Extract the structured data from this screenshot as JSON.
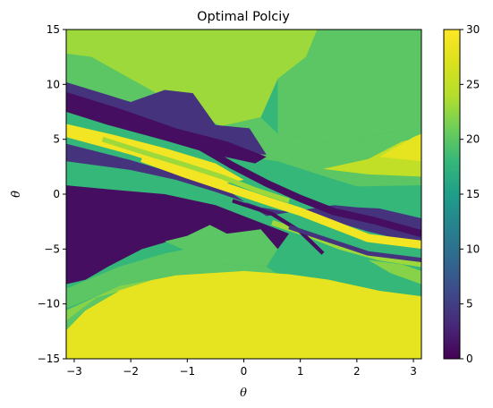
{
  "chart_data": {
    "type": "heatmap",
    "title": "Optimal Polciy",
    "xlabel": "θ",
    "ylabel": "θ̇",
    "xlim": [
      -3.14159,
      3.14159
    ],
    "ylim": [
      -15,
      15
    ],
    "xticks": [
      -3,
      -2,
      -1,
      0,
      1,
      2,
      3
    ],
    "xtick_labels": [
      "−3",
      "−2",
      "−1",
      "0",
      "1",
      "2",
      "3"
    ],
    "yticks": [
      -15,
      -10,
      -5,
      0,
      5,
      10,
      15
    ],
    "ytick_labels": [
      "−15",
      "−10",
      "−5",
      "0",
      "5",
      "10",
      "15"
    ],
    "colorbar": {
      "colormap": "viridis",
      "range": [
        0,
        30
      ],
      "ticks": [
        0,
        5,
        10,
        15,
        20,
        25,
        30
      ],
      "tick_labels": [
        "0",
        "5",
        "10",
        "15",
        "20",
        "25",
        "30"
      ]
    },
    "grid": false,
    "regions": [
      {
        "value": 23,
        "polygon": [
          [
            -3.14159,
            15
          ],
          [
            1.3,
            15
          ],
          [
            1.1,
            12.5
          ],
          [
            0.6,
            10.5
          ],
          [
            0.3,
            7.0
          ],
          [
            -0.4,
            6.2
          ],
          [
            -1.2,
            8.2
          ],
          [
            -2.0,
            10.5
          ],
          [
            -2.7,
            12.5
          ],
          [
            -3.14159,
            12.8
          ]
        ]
      },
      {
        "value": 20,
        "polygon": [
          [
            1.3,
            15
          ],
          [
            3.14159,
            15
          ],
          [
            3.14159,
            6.0
          ],
          [
            2.3,
            5.4
          ],
          [
            1.7,
            4.5
          ],
          [
            1.2,
            5.0
          ],
          [
            0.6,
            5.5
          ],
          [
            0.6,
            10.5
          ],
          [
            1.1,
            12.5
          ]
        ]
      },
      {
        "value": 20,
        "polygon": [
          [
            -3.14159,
            12.8
          ],
          [
            -2.7,
            12.5
          ],
          [
            -2.0,
            10.5
          ],
          [
            -1.2,
            8.2
          ],
          [
            -0.4,
            6.2
          ],
          [
            0.3,
            7.0
          ],
          [
            0.6,
            5.5
          ],
          [
            0.6,
            3.0
          ],
          [
            -0.8,
            4.0
          ],
          [
            -2.0,
            7.0
          ],
          [
            -3.14159,
            9.5
          ]
        ]
      },
      {
        "value": 20,
        "polygon": [
          [
            1.2,
            5.0
          ],
          [
            1.7,
            4.5
          ],
          [
            2.3,
            5.4
          ],
          [
            3.14159,
            6.0
          ],
          [
            3.14159,
            0.8
          ],
          [
            2.0,
            0.7
          ],
          [
            1.2,
            2.0
          ],
          [
            0.6,
            3.0
          ],
          [
            0.6,
            5.5
          ]
        ]
      },
      {
        "value": 25,
        "polygon": [
          [
            1.4,
            2.3
          ],
          [
            2.2,
            3.2
          ],
          [
            2.8,
            4.8
          ],
          [
            3.14159,
            5.2
          ],
          [
            3.14159,
            1.6
          ],
          [
            2.2,
            1.8
          ]
        ]
      },
      {
        "value": 28,
        "polygon": [
          [
            2.4,
            3.4
          ],
          [
            3.0,
            5.2
          ],
          [
            3.14159,
            5.5
          ],
          [
            3.14159,
            3.0
          ]
        ]
      },
      {
        "value": 4,
        "polygon": [
          [
            -3.14159,
            10.2
          ],
          [
            -2.0,
            8.4
          ],
          [
            -1.4,
            9.5
          ],
          [
            -0.9,
            9.2
          ],
          [
            -0.5,
            6.3
          ],
          [
            0.1,
            6.0
          ],
          [
            0.4,
            3.6
          ],
          [
            -0.3,
            3.8
          ],
          [
            -1.2,
            5.0
          ],
          [
            -2.2,
            6.8
          ],
          [
            -3.14159,
            8.0
          ]
        ]
      },
      {
        "value": 1,
        "polygon": [
          [
            -3.14159,
            9.3
          ],
          [
            -2.2,
            7.8
          ],
          [
            -1.2,
            6.0
          ],
          [
            -0.3,
            4.8
          ],
          [
            0.4,
            3.4
          ],
          [
            0.2,
            2.8
          ],
          [
            -0.6,
            3.7
          ],
          [
            -1.4,
            4.9
          ],
          [
            -2.4,
            6.3
          ],
          [
            -3.14159,
            7.5
          ]
        ]
      },
      {
        "value": 29,
        "polygon": [
          [
            -3.14159,
            6.4
          ],
          [
            -2.3,
            5.4
          ],
          [
            -1.4,
            4.2
          ],
          [
            -0.5,
            2.8
          ],
          [
            0.0,
            1.3
          ],
          [
            -0.4,
            0.9
          ],
          [
            -1.1,
            2.1
          ],
          [
            -2.0,
            3.6
          ],
          [
            -3.14159,
            5.2
          ]
        ]
      },
      {
        "value": 4,
        "polygon": [
          [
            -3.14159,
            4.6
          ],
          [
            -2.0,
            3.1
          ],
          [
            -1.1,
            1.7
          ],
          [
            -0.3,
            0.4
          ],
          [
            0.1,
            -1.0
          ],
          [
            0.4,
            -2.0
          ],
          [
            1.1,
            -1.4
          ],
          [
            1.6,
            -1.0
          ],
          [
            2.0,
            -1.2
          ],
          [
            2.4,
            -1.3
          ],
          [
            3.14159,
            -2.2
          ],
          [
            3.14159,
            -4.6
          ],
          [
            2.2,
            -3.4
          ],
          [
            1.6,
            -2.5
          ],
          [
            1.0,
            -1.8
          ],
          [
            0.3,
            -1.2
          ],
          [
            -0.5,
            0.2
          ],
          [
            -1.2,
            1.3
          ],
          [
            -2.0,
            2.2
          ],
          [
            -3.14159,
            3.0
          ]
        ]
      },
      {
        "value": 1,
        "polygon": [
          [
            -3.14159,
            0.8
          ],
          [
            -2.3,
            0.4
          ],
          [
            -1.4,
            0.0
          ],
          [
            -0.5,
            -1.0
          ],
          [
            0.3,
            -2.6
          ],
          [
            0.8,
            -3.6
          ],
          [
            0.6,
            -5.0
          ],
          [
            -0.4,
            -3.8
          ],
          [
            -1.2,
            -2.4
          ],
          [
            -2.2,
            -1.6
          ],
          [
            -3.14159,
            -1.2
          ]
        ]
      },
      {
        "value": 1,
        "polygon": [
          [
            -3.14159,
            -1.0
          ],
          [
            -2.2,
            -1.5
          ],
          [
            -1.2,
            -2.2
          ],
          [
            -0.6,
            -2.8
          ],
          [
            -1.0,
            -3.8
          ],
          [
            -1.8,
            -5.0
          ],
          [
            -2.4,
            -6.6
          ],
          [
            -2.8,
            -7.8
          ],
          [
            -3.14159,
            -8.2
          ]
        ]
      },
      {
        "value": 20,
        "polygon": [
          [
            -0.6,
            -2.8
          ],
          [
            -0.3,
            -3.6
          ],
          [
            0.3,
            -3.2
          ],
          [
            0.6,
            -5.0
          ],
          [
            0.4,
            -6.6
          ],
          [
            -0.4,
            -6.4
          ],
          [
            -1.0,
            -5.2
          ],
          [
            -1.4,
            -4.3
          ],
          [
            -1.0,
            -3.8
          ]
        ]
      },
      {
        "value": 20,
        "polygon": [
          [
            -3.14159,
            -8.6
          ],
          [
            -2.2,
            -6.6
          ],
          [
            -1.4,
            -5.4
          ],
          [
            -0.8,
            -4.8
          ],
          [
            -0.4,
            -6.4
          ],
          [
            0.4,
            -6.6
          ],
          [
            0.8,
            -8.0
          ],
          [
            1.5,
            -8.6
          ],
          [
            2.4,
            -9.0
          ],
          [
            3.14159,
            -9.3
          ],
          [
            3.14159,
            -10.2
          ],
          [
            2.2,
            -8.6
          ],
          [
            1.2,
            -7.8
          ],
          [
            0.0,
            -7.4
          ],
          [
            -1.2,
            -7.6
          ],
          [
            -2.2,
            -8.5
          ],
          [
            -3.14159,
            -10.4
          ]
        ]
      },
      {
        "value": 22,
        "polygon": [
          [
            3.14159,
            -8.2
          ],
          [
            2.6,
            -7.2
          ],
          [
            2.2,
            -6.0
          ],
          [
            2.8,
            -6.4
          ],
          [
            3.14159,
            -7.0
          ]
        ]
      },
      {
        "value": 28,
        "polygon": [
          [
            -3.14159,
            -15
          ],
          [
            3.14159,
            -15
          ],
          [
            3.14159,
            -9.3
          ],
          [
            2.4,
            -8.8
          ],
          [
            1.5,
            -7.8
          ],
          [
            0.8,
            -7.3
          ],
          [
            0.0,
            -7.0
          ],
          [
            -1.2,
            -7.4
          ],
          [
            -2.2,
            -8.4
          ],
          [
            -3.14159,
            -10.6
          ]
        ]
      },
      {
        "value": 22,
        "polygon": [
          [
            -3.14159,
            -10.6
          ],
          [
            -2.2,
            -8.4
          ],
          [
            -1.2,
            -7.4
          ],
          [
            -0.8,
            -7.0
          ],
          [
            -1.6,
            -7.8
          ],
          [
            -2.6,
            -9.4
          ],
          [
            -3.14159,
            -11.5
          ]
        ]
      },
      {
        "value": 20,
        "polygon": [
          [
            -3.14159,
            -11.5
          ],
          [
            -2.6,
            -9.4
          ],
          [
            -2.2,
            -8.8
          ],
          [
            -2.8,
            -10.6
          ],
          [
            -3.14159,
            -12.4
          ]
        ]
      }
    ],
    "bands": [
      {
        "value": 29,
        "points": [
          [
            -1.8,
            3.3
          ],
          [
            -1.0,
            1.8
          ],
          [
            -0.3,
            0.6
          ],
          [
            0.4,
            -0.6
          ],
          [
            1.0,
            -1.6
          ],
          [
            1.6,
            -2.8
          ],
          [
            2.2,
            -4.0
          ],
          [
            3.14159,
            -4.6
          ]
        ],
        "width": 0.75
      },
      {
        "value": 1,
        "points": [
          [
            -1.5,
            5.8
          ],
          [
            -0.8,
            4.4
          ],
          [
            -0.2,
            2.6
          ],
          [
            0.4,
            1.0
          ],
          [
            1.0,
            -0.4
          ],
          [
            1.6,
            -1.6
          ],
          [
            2.3,
            -2.4
          ],
          [
            3.14159,
            -3.6
          ]
        ],
        "width": 0.65
      },
      {
        "value": 23,
        "points": [
          [
            -2.5,
            5.0
          ],
          [
            -1.7,
            3.7
          ],
          [
            -1.0,
            2.6
          ],
          [
            -0.4,
            1.6
          ],
          [
            0.2,
            0.4
          ],
          [
            0.8,
            -0.6
          ]
        ],
        "width": 0.45
      },
      {
        "value": 23,
        "points": [
          [
            0.5,
            -2.6
          ],
          [
            1.1,
            -3.6
          ],
          [
            1.7,
            -4.8
          ],
          [
            2.4,
            -5.8
          ],
          [
            3.14159,
            -6.4
          ]
        ],
        "width": 0.5
      },
      {
        "value": 1,
        "points": [
          [
            -0.2,
            -0.6
          ],
          [
            0.5,
            -1.8
          ],
          [
            1.0,
            -3.4
          ],
          [
            1.4,
            -5.4
          ]
        ],
        "width": 0.35
      },
      {
        "value": 4,
        "points": [
          [
            0.8,
            -3.0
          ],
          [
            1.5,
            -4.2
          ],
          [
            2.2,
            -5.4
          ],
          [
            3.14159,
            -6.0
          ]
        ],
        "width": 0.4
      }
    ]
  }
}
